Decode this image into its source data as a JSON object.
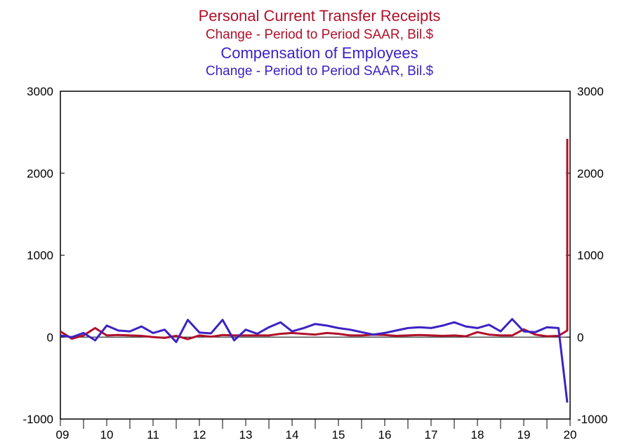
{
  "chart_data": {
    "type": "line",
    "titles": [
      {
        "text": "Personal Current Transfer Receipts",
        "color": "#b0112a"
      },
      {
        "text": "Change - Period to Period     SAAR, Bil.$",
        "color": "#b0112a"
      },
      {
        "text": "Compensation of Employees",
        "color": "#3d22c4"
      },
      {
        "text": "Change - Period to Period     SAAR, Bil.$",
        "color": "#3d22c4"
      }
    ],
    "ylim": [
      -1000,
      3000
    ],
    "yticks": [
      "-1000",
      "0",
      "1000",
      "2000",
      "3000"
    ],
    "yticks_right": [
      "-1000",
      "0",
      "1000",
      "2000",
      "3000"
    ],
    "xlim": [
      2009,
      2020
    ],
    "xticks": [
      "09",
      "10",
      "11",
      "12",
      "13",
      "14",
      "15",
      "16",
      "17",
      "18",
      "19",
      "20"
    ],
    "zero_line": true,
    "grid": false,
    "series": [
      {
        "name": "Personal Current Transfer Receipts",
        "color": "#b0112a",
        "x": [
          2009.0,
          2009.25,
          2009.5,
          2009.75,
          2010.0,
          2010.25,
          2010.5,
          2010.75,
          2011.0,
          2011.25,
          2011.5,
          2011.75,
          2012.0,
          2012.25,
          2012.5,
          2012.75,
          2013.0,
          2013.25,
          2013.5,
          2013.75,
          2014.0,
          2014.25,
          2014.5,
          2014.75,
          2015.0,
          2015.25,
          2015.5,
          2015.75,
          2016.0,
          2016.25,
          2016.5,
          2016.75,
          2017.0,
          2017.25,
          2017.5,
          2017.75,
          2018.0,
          2018.25,
          2018.5,
          2018.75,
          2019.0,
          2019.25,
          2019.5,
          2019.75,
          2020.0
        ],
        "values": [
          70,
          -20,
          20,
          110,
          20,
          25,
          20,
          15,
          0,
          -10,
          15,
          -25,
          20,
          5,
          25,
          20,
          20,
          20,
          20,
          40,
          50,
          40,
          30,
          50,
          40,
          20,
          20,
          30,
          25,
          15,
          20,
          25,
          20,
          15,
          20,
          10,
          60,
          30,
          20,
          20,
          95,
          30,
          10,
          15,
          80
        ]
      },
      {
        "name": "Compensation of Employees",
        "color": "#3d22c4",
        "x": [
          2009.0,
          2009.25,
          2009.5,
          2009.75,
          2010.0,
          2010.25,
          2010.5,
          2010.75,
          2011.0,
          2011.25,
          2011.5,
          2011.75,
          2012.0,
          2012.25,
          2012.5,
          2012.75,
          2013.0,
          2013.25,
          2013.5,
          2013.75,
          2014.0,
          2014.25,
          2014.5,
          2014.75,
          2015.0,
          2015.25,
          2015.5,
          2015.75,
          2016.0,
          2016.25,
          2016.5,
          2016.75,
          2017.0,
          2017.25,
          2017.5,
          2017.75,
          2018.0,
          2018.25,
          2018.5,
          2018.75,
          2019.0,
          2019.25,
          2019.5,
          2019.75,
          2020.0
        ],
        "values": [
          20,
          0,
          50,
          -40,
          140,
          80,
          70,
          130,
          50,
          90,
          -60,
          210,
          55,
          45,
          210,
          -40,
          90,
          40,
          120,
          180,
          70,
          110,
          160,
          140,
          110,
          90,
          60,
          30,
          50,
          80,
          110,
          120,
          110,
          140,
          180,
          130,
          110,
          150,
          70,
          220,
          70,
          60,
          120,
          110,
          -800
        ]
      }
    ],
    "extra_endpoints": [
      {
        "series": 0,
        "x": 2020.2,
        "value": 2420
      },
      {
        "series": 1,
        "x": 2020.2,
        "value": -800
      }
    ]
  }
}
